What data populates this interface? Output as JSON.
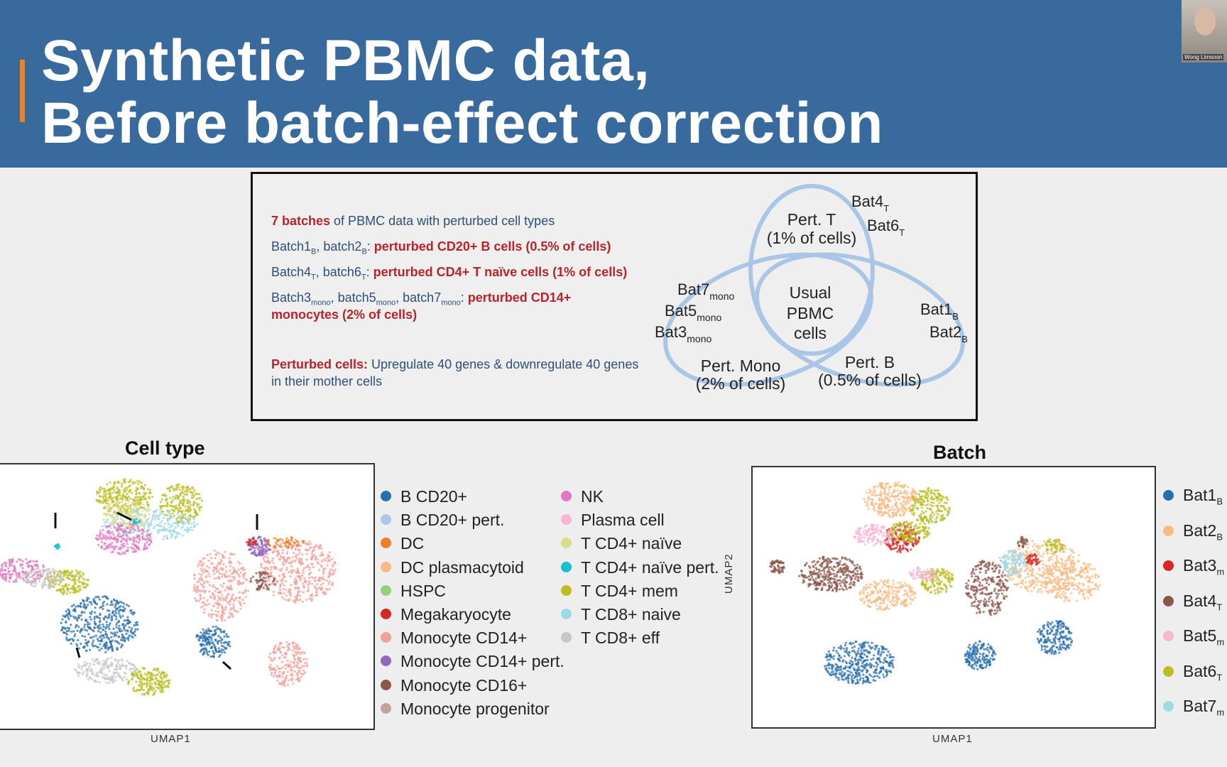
{
  "slide": {
    "title_line1": "Synthetic PBMC data,",
    "title_line2": "Before batch-effect correction"
  },
  "webcam": {
    "name": "Wong Limsoon"
  },
  "info": {
    "line1_red": "7 batches",
    "line1_rest": " of PBMC data with perturbed cell types",
    "line2_a": "Batch1",
    "line2_a_sub": "B",
    "line2_b": ", batch2",
    "line2_b_sub": "B",
    "line2_c": ": ",
    "line2_red": "perturbed CD20+ B cells (0.5% of cells)",
    "line3_a": "Batch4",
    "line3_a_sub": "T",
    "line3_b": ", batch6",
    "line3_b_sub": "T",
    "line3_c": ": ",
    "line3_red": "perturbed CD4+ T naïve cells (1% of cells)",
    "line4_a": "Batch3",
    "line4_a_sub": "mono",
    "line4_b": ", batch5",
    "line4_b_sub": "mono",
    "line4_c": ", batch7",
    "line4_c_sub": "mono",
    "line4_d": ": ",
    "line4_red": "perturbed CD14+",
    "line5_red": "monocytes (2% of cells)",
    "line6_red": "Perturbed cells:",
    "line6_rest": " Upregulate 40 genes & downregulate 40 genes",
    "line7": "in their mother cells"
  },
  "venn": {
    "top_label_1": "Pert. T",
    "top_label_2": "(1% of cells)",
    "center_1": "Usual",
    "center_2": "PBMC",
    "center_3": "cells",
    "left_label_1": "Pert. Mono",
    "left_label_2": "(2% of cells)",
    "right_label_1": "Pert. B",
    "right_label_2": "(0.5% of cells)",
    "bat4": "Bat4",
    "bat4_sub": "T",
    "bat6": "Bat6",
    "bat6_sub": "T",
    "bat7": "Bat7",
    "bat7_sub": "mono",
    "bat5": "Bat5",
    "bat5_sub": "mono",
    "bat3": "Bat3",
    "bat3_sub": "mono",
    "bat1": "Bat1",
    "bat1_sub": "B",
    "bat2": "Bat2",
    "bat2_sub": "B",
    "circle_color": "#a9c6e6"
  },
  "celltype_plot": {
    "title": "Cell type",
    "xlabel": "UMAP1",
    "legend": [
      {
        "label": "B CD20+",
        "color": "#2a6fad"
      },
      {
        "label": "B CD20+ pert.",
        "color": "#aec6e8"
      },
      {
        "label": "DC",
        "color": "#ef7f22"
      },
      {
        "label": "DC plasmacytoid",
        "color": "#f9bb82"
      },
      {
        "label": "HSPC",
        "color": "#8fd27e"
      },
      {
        "label": "Megakaryocyte",
        "color": "#d62728"
      },
      {
        "label": "Monocyte CD14+",
        "color": "#f4a09a"
      },
      {
        "label": "Monocyte CD14+ pert.",
        "color": "#9467bd"
      },
      {
        "label": "Monocyte CD16+",
        "color": "#8c564b"
      },
      {
        "label": "Monocyte progenitor",
        "color": "#c7a29b"
      },
      {
        "label": "NK",
        "color": "#e377c2"
      },
      {
        "label": "Plasma cell",
        "color": "#f7b6d2"
      },
      {
        "label": "T CD4+ naïve",
        "color": "#dbdb8d"
      },
      {
        "label": "T CD4+ naïve pert.",
        "color": "#17becf"
      },
      {
        "label": "T CD4+ mem",
        "color": "#bcbd22"
      },
      {
        "label": "T CD8+ naive",
        "color": "#9edae5"
      },
      {
        "label": "T CD8+ eff",
        "color": "#c7c7c7"
      }
    ]
  },
  "batch_plot": {
    "title": "Batch",
    "xlabel": "UMAP1",
    "ylabel": "UMAP2",
    "legend": [
      {
        "label": "Bat1",
        "sub": "B",
        "color": "#2a6fad"
      },
      {
        "label": "Bat2",
        "sub": "B",
        "color": "#f9bb82"
      },
      {
        "label": "Bat3",
        "sub": "m",
        "color": "#d62728"
      },
      {
        "label": "Bat4",
        "sub": "T",
        "color": "#8c564b"
      },
      {
        "label": "Bat5",
        "sub": "m",
        "color": "#f7b6d2"
      },
      {
        "label": "Bat6",
        "sub": "T",
        "color": "#bcbd22"
      },
      {
        "label": "Bat7",
        "sub": "m",
        "color": "#9edae5"
      }
    ]
  }
}
